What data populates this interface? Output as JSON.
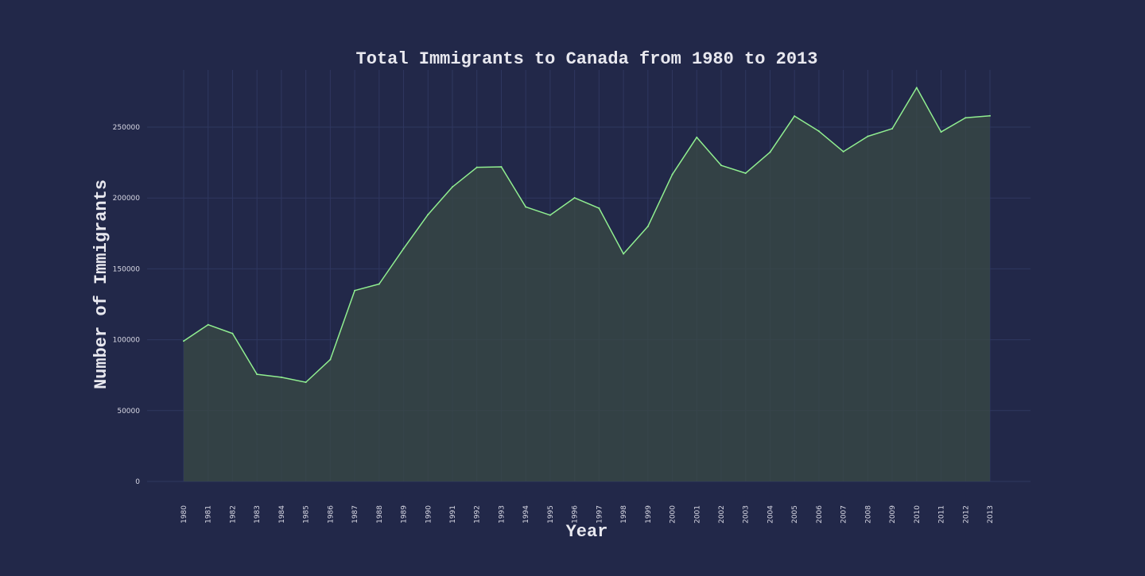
{
  "colors": {
    "background": "#222849",
    "line": "#90ee90",
    "fill": "#3a4a44",
    "grid": "#2f3760"
  },
  "chart_data": {
    "type": "area",
    "title": "Total Immigrants to Canada from 1980 to 2013",
    "xlabel": "Year",
    "ylabel": "Number of Immigrants",
    "grid": true,
    "ylim": [
      0,
      290000
    ],
    "yticks": [
      0,
      50000,
      100000,
      150000,
      200000,
      250000
    ],
    "ytick_labels": [
      "0",
      "50000",
      "100000",
      "150000",
      "200000",
      "250000"
    ],
    "x": [
      "1980",
      "1981",
      "1982",
      "1983",
      "1984",
      "1985",
      "1986",
      "1987",
      "1988",
      "1989",
      "1990",
      "1991",
      "1992",
      "1993",
      "1994",
      "1995",
      "1996",
      "1997",
      "1998",
      "1999",
      "2000",
      "2001",
      "2002",
      "2003",
      "2004",
      "2005",
      "2006",
      "2007",
      "2008",
      "2009",
      "2010",
      "2011",
      "2012",
      "2013"
    ],
    "series": [
      {
        "values": [
          99100,
          110600,
          104400,
          75600,
          73500,
          70000,
          86000,
          134700,
          139300,
          164300,
          188300,
          207800,
          221600,
          222000,
          193700,
          187900,
          200100,
          192800,
          160600,
          179900,
          216600,
          242800,
          223000,
          217500,
          232300,
          257800,
          247100,
          232700,
          243500,
          248900,
          277800,
          246600,
          256600,
          258000
        ]
      }
    ]
  }
}
